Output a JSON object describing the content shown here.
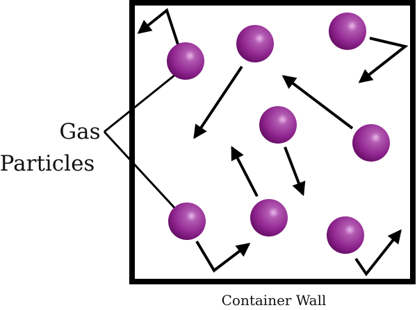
{
  "labels": {
    "particles_line1": "Gas",
    "particles_line2": "Particles",
    "wall": "Container Wall"
  },
  "colors": {
    "particle_highlight": "#e9b9e9",
    "particle_mid": "#8e248e",
    "particle_dark": "#5e0a5e",
    "ink": "#000000"
  }
}
